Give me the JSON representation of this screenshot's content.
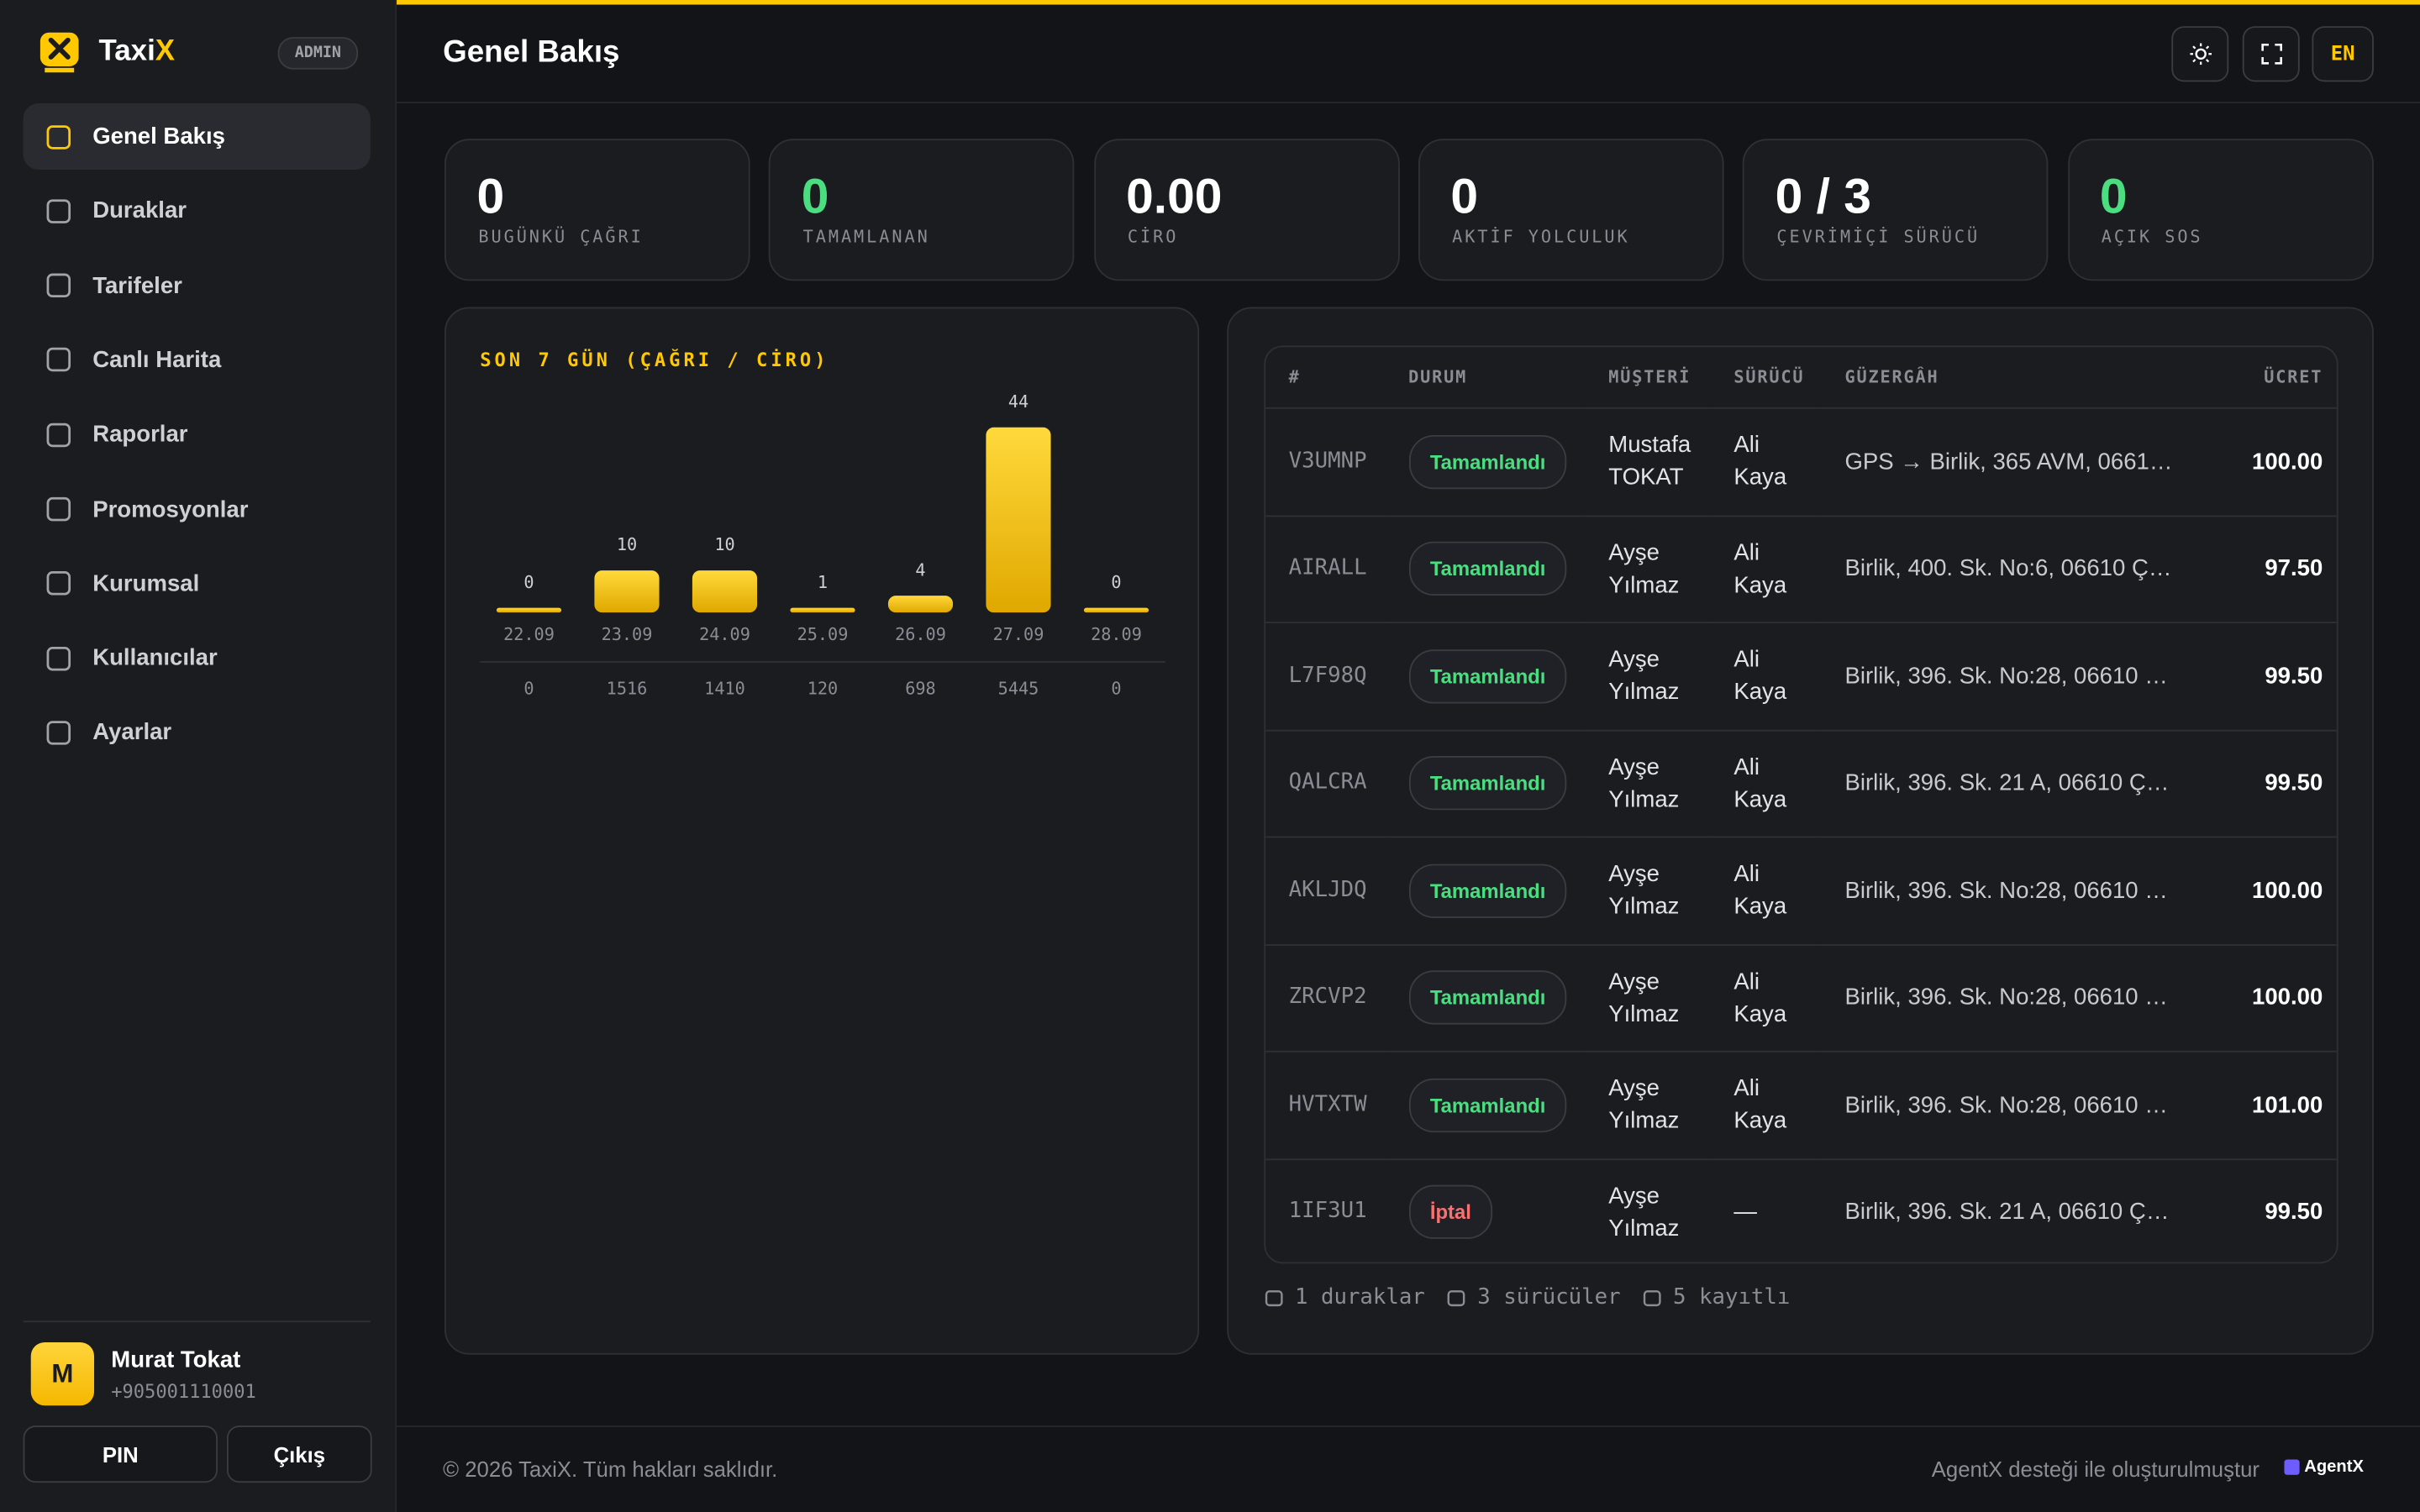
{
  "sidebar": {
    "brand": "Taxi",
    "brand_accent": "X",
    "badge": "ADMIN",
    "nav": [
      "Genel Bakış",
      "Duraklar",
      "Tarifeler",
      "Canlı Harita",
      "Raporlar",
      "Promosyonlar",
      "Kurumsal",
      "Kullanıcılar",
      "Ayarlar"
    ],
    "user": {
      "initial": "M",
      "name": "Murat Tokat",
      "phone": "+905001110001"
    },
    "buttons": [
      "PIN",
      "Çıkış"
    ]
  },
  "header": {
    "title": "Genel Bakış",
    "lang": "EN"
  },
  "stats": [
    {
      "value": "0",
      "label": "BUGÜNKÜ ÇAĞRI",
      "color": "#ffffff"
    },
    {
      "value": "0",
      "label": "TAMAMLANAN",
      "color": "#4ade80"
    },
    {
      "value": "0.00",
      "label": "CİRO",
      "color": "#ffffff"
    },
    {
      "value": "0",
      "label": "AKTİF YOLCULUK",
      "color": "#ffffff"
    },
    {
      "value": "0 / 3",
      "label": "ÇEVRİMİÇİ SÜRÜCÜ",
      "color": "#ffffff"
    },
    {
      "value": "0",
      "label": "AÇIK SOS",
      "color": "#4ade80"
    }
  ],
  "chart_data": {
    "type": "bar",
    "title": "SON 7 GÜN (ÇAĞRI / CİRO)",
    "categories": [
      "22.09",
      "23.09",
      "24.09",
      "25.09",
      "26.09",
      "27.09",
      "28.09"
    ],
    "values": [
      0,
      10,
      10,
      1,
      4,
      44,
      0
    ],
    "revenue": [
      0,
      1516,
      1410,
      120,
      698,
      5445,
      0
    ],
    "color": "#ffc800"
  },
  "table": {
    "headers": [
      "#",
      "DURUM",
      "MÜŞTERİ",
      "SÜRÜCÜ",
      "GÜZERGÂH",
      "ÜCRET"
    ],
    "rows": [
      {
        "cells": [
          "V3UMNP",
          "Tamamlandı",
          "Mustafa TOKAT",
          "Ali Kaya",
          "GPS → Birlik, 365 AVM, 06610 ...",
          "100.00"
        ],
        "status_color": "#4ade80"
      },
      {
        "cells": [
          "AIRALL",
          "Tamamlandı",
          "Ayşe Yılmaz",
          "Ali Kaya",
          "Birlik, 400. Sk. No:6, 06610 Ça...",
          "97.50"
        ],
        "status_color": "#4ade80"
      },
      {
        "cells": [
          "L7F98Q",
          "Tamamlandı",
          "Ayşe Yılmaz",
          "Ali Kaya",
          "Birlik, 396. Sk. No:28, 06610 Ç...",
          "99.50"
        ],
        "status_color": "#4ade80"
      },
      {
        "cells": [
          "QALCRA",
          "Tamamlandı",
          "Ayşe Yılmaz",
          "Ali Kaya",
          "Birlik, 396. Sk. 21 A, 06610 Ça...",
          "99.50"
        ],
        "status_color": "#4ade80"
      },
      {
        "cells": [
          "AKLJDQ",
          "Tamamlandı",
          "Ayşe Yılmaz",
          "Ali Kaya",
          "Birlik, 396. Sk. No:28, 06610 Ç...",
          "100.00"
        ],
        "status_color": "#4ade80"
      },
      {
        "cells": [
          "ZRCVP2",
          "Tamamlandı",
          "Ayşe Yılmaz",
          "Ali Kaya",
          "Birlik, 396. Sk. No:28, 06610 Ç...",
          "100.00"
        ],
        "status_color": "#4ade80"
      },
      {
        "cells": [
          "HVTXTW",
          "Tamamlandı",
          "Ayşe Yılmaz",
          "Ali Kaya",
          "Birlik, 396. Sk. No:28, 06610 Ç...",
          "101.00"
        ],
        "status_color": "#4ade80"
      },
      {
        "cells": [
          "1IF3U1",
          "İptal",
          "Ayşe Yılmaz",
          "—",
          "Birlik, 396. Sk. 21 A, 06610 Ça...",
          "99.50"
        ],
        "status_color": "#f87171"
      }
    ],
    "summary": [
      "1 duraklar",
      "3 sürücüler",
      "5 kayıtlı"
    ]
  },
  "footer": {
    "copyright": "© 2026 TaxiX. Tüm hakları saklıdır.",
    "credit": "AgentX desteği ile oluşturulmuştur",
    "logo": "AgentX"
  }
}
